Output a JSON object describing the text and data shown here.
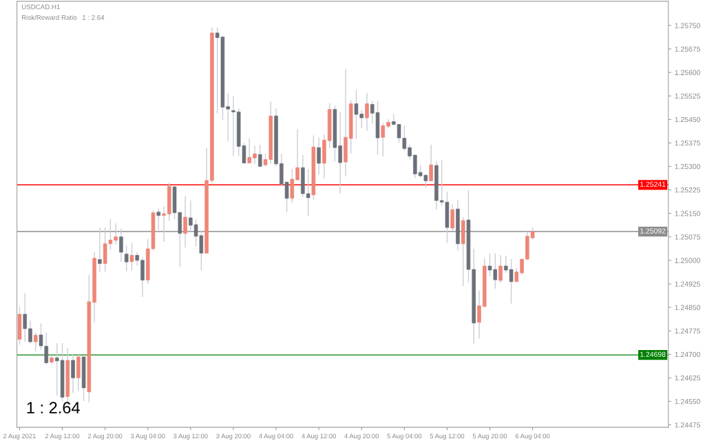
{
  "chart_data": {
    "type": "candlestick",
    "title": "USDCAD.H1",
    "annotations": [
      "Risk/Reward Ratio",
      "1 : 2.64",
      "1 : 2.64"
    ],
    "x": [
      "2021-08-02T04:00",
      "2021-08-02T05:00",
      "2021-08-02T06:00",
      "2021-08-02T07:00",
      "2021-08-02T08:00",
      "2021-08-02T09:00",
      "2021-08-02T10:00",
      "2021-08-02T11:00",
      "2021-08-02T12:00",
      "2021-08-02T13:00",
      "2021-08-02T14:00",
      "2021-08-02T15:00",
      "2021-08-02T16:00",
      "2021-08-02T17:00",
      "2021-08-02T18:00",
      "2021-08-02T19:00",
      "2021-08-02T20:00",
      "2021-08-02T21:00",
      "2021-08-02T22:00",
      "2021-08-02T23:00",
      "2021-08-03T00:00",
      "2021-08-03T01:00",
      "2021-08-03T02:00",
      "2021-08-03T03:00",
      "2021-08-03T04:00",
      "2021-08-03T05:00",
      "2021-08-03T06:00",
      "2021-08-03T07:00",
      "2021-08-03T08:00",
      "2021-08-03T09:00",
      "2021-08-03T10:00",
      "2021-08-03T11:00",
      "2021-08-03T12:00",
      "2021-08-03T13:00",
      "2021-08-03T14:00",
      "2021-08-03T15:00",
      "2021-08-03T16:00",
      "2021-08-03T17:00",
      "2021-08-03T18:00",
      "2021-08-03T19:00",
      "2021-08-03T20:00",
      "2021-08-03T21:00",
      "2021-08-03T22:00",
      "2021-08-03T23:00",
      "2021-08-04T00:00",
      "2021-08-04T01:00",
      "2021-08-04T02:00",
      "2021-08-04T03:00",
      "2021-08-04T04:00",
      "2021-08-04T05:00",
      "2021-08-04T06:00",
      "2021-08-04T07:00",
      "2021-08-04T08:00",
      "2021-08-04T09:00",
      "2021-08-04T10:00",
      "2021-08-04T11:00",
      "2021-08-04T12:00",
      "2021-08-04T13:00",
      "2021-08-04T14:00",
      "2021-08-04T15:00",
      "2021-08-04T16:00",
      "2021-08-04T17:00",
      "2021-08-04T18:00",
      "2021-08-04T19:00",
      "2021-08-04T20:00",
      "2021-08-04T21:00",
      "2021-08-04T22:00",
      "2021-08-04T23:00",
      "2021-08-05T00:00",
      "2021-08-05T01:00",
      "2021-08-05T02:00",
      "2021-08-05T03:00",
      "2021-08-05T04:00",
      "2021-08-05T05:00",
      "2021-08-05T06:00",
      "2021-08-05T07:00",
      "2021-08-05T08:00",
      "2021-08-05T09:00",
      "2021-08-05T10:00",
      "2021-08-05T11:00",
      "2021-08-05T12:00",
      "2021-08-05T13:00",
      "2021-08-05T14:00",
      "2021-08-05T15:00",
      "2021-08-05T16:00",
      "2021-08-05T17:00",
      "2021-08-05T18:00",
      "2021-08-05T19:00",
      "2021-08-05T20:00",
      "2021-08-05T21:00",
      "2021-08-05T22:00",
      "2021-08-05T23:00",
      "2021-08-06T00:00",
      "2021-08-06T01:00",
      "2021-08-06T02:00",
      "2021-08-06T03:00",
      "2021-08-06T04:00"
    ],
    "ohlc": [
      [
        1.24748,
        1.24853,
        1.24731,
        1.24828
      ],
      [
        1.24828,
        1.24895,
        1.2474,
        1.24782
      ],
      [
        1.24782,
        1.24807,
        1.24736,
        1.2474
      ],
      [
        1.2474,
        1.2477,
        1.2471,
        1.24761
      ],
      [
        1.24762,
        1.24799,
        1.24715,
        1.24727
      ],
      [
        1.24726,
        1.24769,
        1.24668,
        1.24673
      ],
      [
        1.24675,
        1.24698,
        1.24668,
        1.24689
      ],
      [
        1.24689,
        1.24736,
        1.24568,
        1.24679
      ],
      [
        1.24681,
        1.24736,
        1.24551,
        1.24563
      ],
      [
        1.24565,
        1.24719,
        1.24542,
        1.24681
      ],
      [
        1.24681,
        1.24702,
        1.24576,
        1.24625
      ],
      [
        1.24625,
        1.24698,
        1.24584,
        1.24692
      ],
      [
        1.24692,
        1.24694,
        1.24551,
        1.24593
      ],
      [
        1.2458,
        1.24954,
        1.24547,
        1.24868
      ],
      [
        1.24866,
        1.25026,
        1.24803,
        1.25007
      ],
      [
        1.25003,
        1.25105,
        1.24964,
        1.2499
      ],
      [
        1.2499,
        1.25105,
        1.24964,
        1.25053
      ],
      [
        1.25053,
        1.25132,
        1.25034,
        1.25065
      ],
      [
        1.25064,
        1.25118,
        1.25051,
        1.25075
      ],
      [
        1.25075,
        1.25101,
        1.24996,
        1.25026
      ],
      [
        1.2502,
        1.25047,
        1.24965,
        1.24995
      ],
      [
        1.24996,
        1.25055,
        1.24967,
        1.25016
      ],
      [
        1.25016,
        1.25026,
        1.24984,
        1.25
      ],
      [
        1.25,
        1.25009,
        1.24883,
        1.24937
      ],
      [
        1.24937,
        1.25068,
        1.24925,
        1.25037
      ],
      [
        1.25037,
        1.2516,
        1.25031,
        1.25152
      ],
      [
        1.25154,
        1.25165,
        1.25096,
        1.25143
      ],
      [
        1.25143,
        1.25173,
        1.25059,
        1.25149
      ],
      [
        1.25148,
        1.25248,
        1.25126,
        1.25237
      ],
      [
        1.25235,
        1.25235,
        1.25131,
        1.25152
      ],
      [
        1.25153,
        1.25153,
        1.24979,
        1.25086
      ],
      [
        1.25086,
        1.25205,
        1.25041,
        1.25138
      ],
      [
        1.25136,
        1.25191,
        1.25092,
        1.25112
      ],
      [
        1.25114,
        1.25131,
        1.25044,
        1.25077
      ],
      [
        1.25079,
        1.25096,
        1.24968,
        1.25023
      ],
      [
        1.25023,
        1.25359,
        1.25023,
        1.25255
      ],
      [
        1.25255,
        1.25743,
        1.25246,
        1.25726
      ],
      [
        1.25726,
        1.25743,
        1.2547,
        1.25711
      ],
      [
        1.25713,
        1.25717,
        1.25448,
        1.25489
      ],
      [
        1.25491,
        1.25533,
        1.25381,
        1.25483
      ],
      [
        1.25478,
        1.25524,
        1.25333,
        1.25474
      ],
      [
        1.25474,
        1.25485,
        1.25333,
        1.25364
      ],
      [
        1.25366,
        1.25375,
        1.25308,
        1.25311
      ],
      [
        1.25311,
        1.2539,
        1.25311,
        1.25329
      ],
      [
        1.25327,
        1.25366,
        1.25308,
        1.2534
      ],
      [
        1.25338,
        1.25369,
        1.25299,
        1.253
      ],
      [
        1.25305,
        1.2534,
        1.25299,
        1.25322
      ],
      [
        1.25322,
        1.25507,
        1.25308,
        1.25461
      ],
      [
        1.25461,
        1.25485,
        1.253,
        1.25308
      ],
      [
        1.25309,
        1.2534,
        1.25237,
        1.25244
      ],
      [
        1.2525,
        1.2525,
        1.25154,
        1.25198
      ],
      [
        1.25198,
        1.25292,
        1.25184,
        1.25259
      ],
      [
        1.25257,
        1.25419,
        1.25257,
        1.25296
      ],
      [
        1.25296,
        1.25336,
        1.25204,
        1.25213
      ],
      [
        1.25213,
        1.25292,
        1.25141,
        1.252
      ],
      [
        1.25209,
        1.25399,
        1.25194,
        1.25362
      ],
      [
        1.2536,
        1.25393,
        1.25273,
        1.2531
      ],
      [
        1.2531,
        1.25401,
        1.25262,
        1.25384
      ],
      [
        1.25382,
        1.25502,
        1.25358,
        1.25482
      ],
      [
        1.25482,
        1.25494,
        1.25316,
        1.2536
      ],
      [
        1.25366,
        1.25474,
        1.25213,
        1.25312
      ],
      [
        1.25314,
        1.25612,
        1.25268,
        1.25393
      ],
      [
        1.25389,
        1.25511,
        1.25341,
        1.255
      ],
      [
        1.255,
        1.25544,
        1.25387,
        1.25466
      ],
      [
        1.25467,
        1.2548,
        1.25422,
        1.25455
      ],
      [
        1.25455,
        1.25535,
        1.25413,
        1.255
      ],
      [
        1.25498,
        1.25509,
        1.25437,
        1.2547
      ],
      [
        1.25472,
        1.25509,
        1.25338,
        1.25391
      ],
      [
        1.25393,
        1.25439,
        1.25332,
        1.2543
      ],
      [
        1.25428,
        1.2545,
        1.25422,
        1.25441
      ],
      [
        1.25443,
        1.25467,
        1.2543,
        1.25434
      ],
      [
        1.25434,
        1.25434,
        1.25376,
        1.25391
      ],
      [
        1.2539,
        1.2543,
        1.25349,
        1.25357
      ],
      [
        1.2536,
        1.25369,
        1.25322,
        1.25333
      ],
      [
        1.25336,
        1.25336,
        1.25263,
        1.25276
      ],
      [
        1.25281,
        1.25303,
        1.25265,
        1.2527
      ],
      [
        1.25272,
        1.25274,
        1.25232,
        1.25254
      ],
      [
        1.25254,
        1.25369,
        1.25252,
        1.25305
      ],
      [
        1.25303,
        1.25318,
        1.25162,
        1.25191
      ],
      [
        1.25191,
        1.2532,
        1.25175,
        1.25186
      ],
      [
        1.25186,
        1.25219,
        1.25055,
        1.25105
      ],
      [
        1.25103,
        1.2518,
        1.25094,
        1.25162
      ],
      [
        1.25164,
        1.25193,
        1.25031,
        1.25053
      ],
      [
        1.25053,
        1.25138,
        1.24917,
        1.25127
      ],
      [
        1.25129,
        1.25224,
        1.2493,
        1.24971
      ],
      [
        1.24971,
        1.25037,
        1.24734,
        1.248
      ],
      [
        1.24802,
        1.24903,
        1.2475,
        1.24855
      ],
      [
        1.24853,
        1.25006,
        1.24849,
        1.24982
      ],
      [
        1.24982,
        1.25022,
        1.24949,
        1.24969
      ],
      [
        1.24971,
        1.25022,
        1.2491,
        1.24938
      ],
      [
        1.24936,
        1.25017,
        1.24928,
        1.24982
      ],
      [
        1.24982,
        1.25015,
        1.2496,
        1.24969
      ],
      [
        1.24971,
        1.25004,
        1.24862,
        1.24932
      ],
      [
        1.24932,
        1.24976,
        1.24932,
        1.24963
      ],
      [
        1.2496,
        1.25004,
        1.24954,
        1.25004
      ],
      [
        1.25004,
        1.25092,
        1.25,
        1.25077
      ],
      [
        1.25072,
        1.25105,
        1.25066,
        1.25092
      ]
    ],
    "colors": [
      "#ee8677",
      "#6b7079",
      "#6b7079",
      "#ee8677",
      "#6b7079",
      "#6b7079",
      "#ee8677",
      "#6b7079",
      "#6b7079",
      "#ee8677",
      "#6b7079",
      "#ee8677",
      "#6b7079",
      "#ee8677",
      "#ee8677",
      "#6b7079",
      "#ee8677",
      "#ee8677",
      "#ee8677",
      "#6b7079",
      "#6b7079",
      "#ee8677",
      "#6b7079",
      "#6b7079",
      "#ee8677",
      "#ee8677",
      "#6b7079",
      "#ee8677",
      "#ee8677",
      "#6b7079",
      "#6b7079",
      "#ee8677",
      "#6b7079",
      "#6b7079",
      "#6b7079",
      "#ee8677",
      "#ee8677",
      "#6b7079",
      "#6b7079",
      "#6b7079",
      "#6b7079",
      "#6b7079",
      "#6b7079",
      "#ee8677",
      "#ee8677",
      "#6b7079",
      "#ee8677",
      "#ee8677",
      "#6b7079",
      "#6b7079",
      "#6b7079",
      "#ee8677",
      "#ee8677",
      "#6b7079",
      "#6b7079",
      "#ee8677",
      "#6b7079",
      "#ee8677",
      "#ee8677",
      "#6b7079",
      "#6b7079",
      "#ee8677",
      "#ee8677",
      "#6b7079",
      "#6b7079",
      "#ee8677",
      "#6b7079",
      "#6b7079",
      "#ee8677",
      "#ee8677",
      "#6b7079",
      "#6b7079",
      "#6b7079",
      "#6b7079",
      "#6b7079",
      "#6b7079",
      "#6b7079",
      "#ee8677",
      "#6b7079",
      "#6b7079",
      "#6b7079",
      "#ee8677",
      "#6b7079",
      "#ee8677",
      "#6b7079",
      "#6b7079",
      "#ee8677",
      "#ee8677",
      "#6b7079",
      "#6b7079",
      "#ee8677",
      "#6b7079",
      "#6b7079",
      "#ee8677",
      "#ee8677",
      "#ee8677",
      "#ee8677"
    ],
    "xlim": [
      "2021-08-02T03:30",
      "2021-08-07T05:24"
    ],
    "xticks": [
      {
        "value": "2021-08-02T04:00",
        "label": "2 Aug 2021"
      },
      {
        "value": "2021-08-02T12:00",
        "label": "2 Aug 12:00"
      },
      {
        "value": "2021-08-02T20:00",
        "label": "2 Aug 20:00"
      },
      {
        "value": "2021-08-03T04:00",
        "label": "3 Aug 04:00"
      },
      {
        "value": "2021-08-03T12:00",
        "label": "3 Aug 12:00"
      },
      {
        "value": "2021-08-03T20:00",
        "label": "3 Aug 20:00"
      },
      {
        "value": "2021-08-04T04:00",
        "label": "4 Aug 04:00"
      },
      {
        "value": "2021-08-04T12:00",
        "label": "4 Aug 12:00"
      },
      {
        "value": "2021-08-04T20:00",
        "label": "4 Aug 20:00"
      },
      {
        "value": "2021-08-05T04:00",
        "label": "5 Aug 04:00"
      },
      {
        "value": "2021-08-05T12:00",
        "label": "5 Aug 12:00"
      },
      {
        "value": "2021-08-05T20:00",
        "label": "5 Aug 20:00"
      },
      {
        "value": "2021-08-06T04:00",
        "label": "6 Aug 04:00"
      }
    ],
    "ylim": [
      1.24467,
      1.25827
    ],
    "yticks": [
      {
        "value": 1.24475,
        "label": "1.24475"
      },
      {
        "value": 1.2455,
        "label": "1.24550"
      },
      {
        "value": 1.24625,
        "label": "1.24625"
      },
      {
        "value": 1.247,
        "label": "1.24700"
      },
      {
        "value": 1.24775,
        "label": "1.24775"
      },
      {
        "value": 1.2485,
        "label": "1.24850"
      },
      {
        "value": 1.24925,
        "label": "1.24925"
      },
      {
        "value": 1.25,
        "label": "1.25000"
      },
      {
        "value": 1.25075,
        "label": "1.25075"
      },
      {
        "value": 1.2515,
        "label": "1.25150"
      },
      {
        "value": 1.25225,
        "label": "1.25225"
      },
      {
        "value": 1.253,
        "label": "1.25300"
      },
      {
        "value": 1.25375,
        "label": "1.25375"
      },
      {
        "value": 1.2545,
        "label": "1.25450"
      },
      {
        "value": 1.25525,
        "label": "1.25525"
      },
      {
        "value": 1.256,
        "label": "1.25600"
      },
      {
        "value": 1.25675,
        "label": "1.25675"
      },
      {
        "value": 1.2575,
        "label": "1.25750"
      }
    ],
    "ref_lines": [
      {
        "axis": "y",
        "value": 1.25241,
        "label": "1.25241",
        "color": "#ff0000"
      },
      {
        "axis": "y",
        "value": 1.24698,
        "label": "1.24698",
        "color": "#008000"
      },
      {
        "axis": "y",
        "value": 1.25092,
        "label": "1.25092",
        "color": "#8c8c8c"
      }
    ],
    "grid": false
  }
}
